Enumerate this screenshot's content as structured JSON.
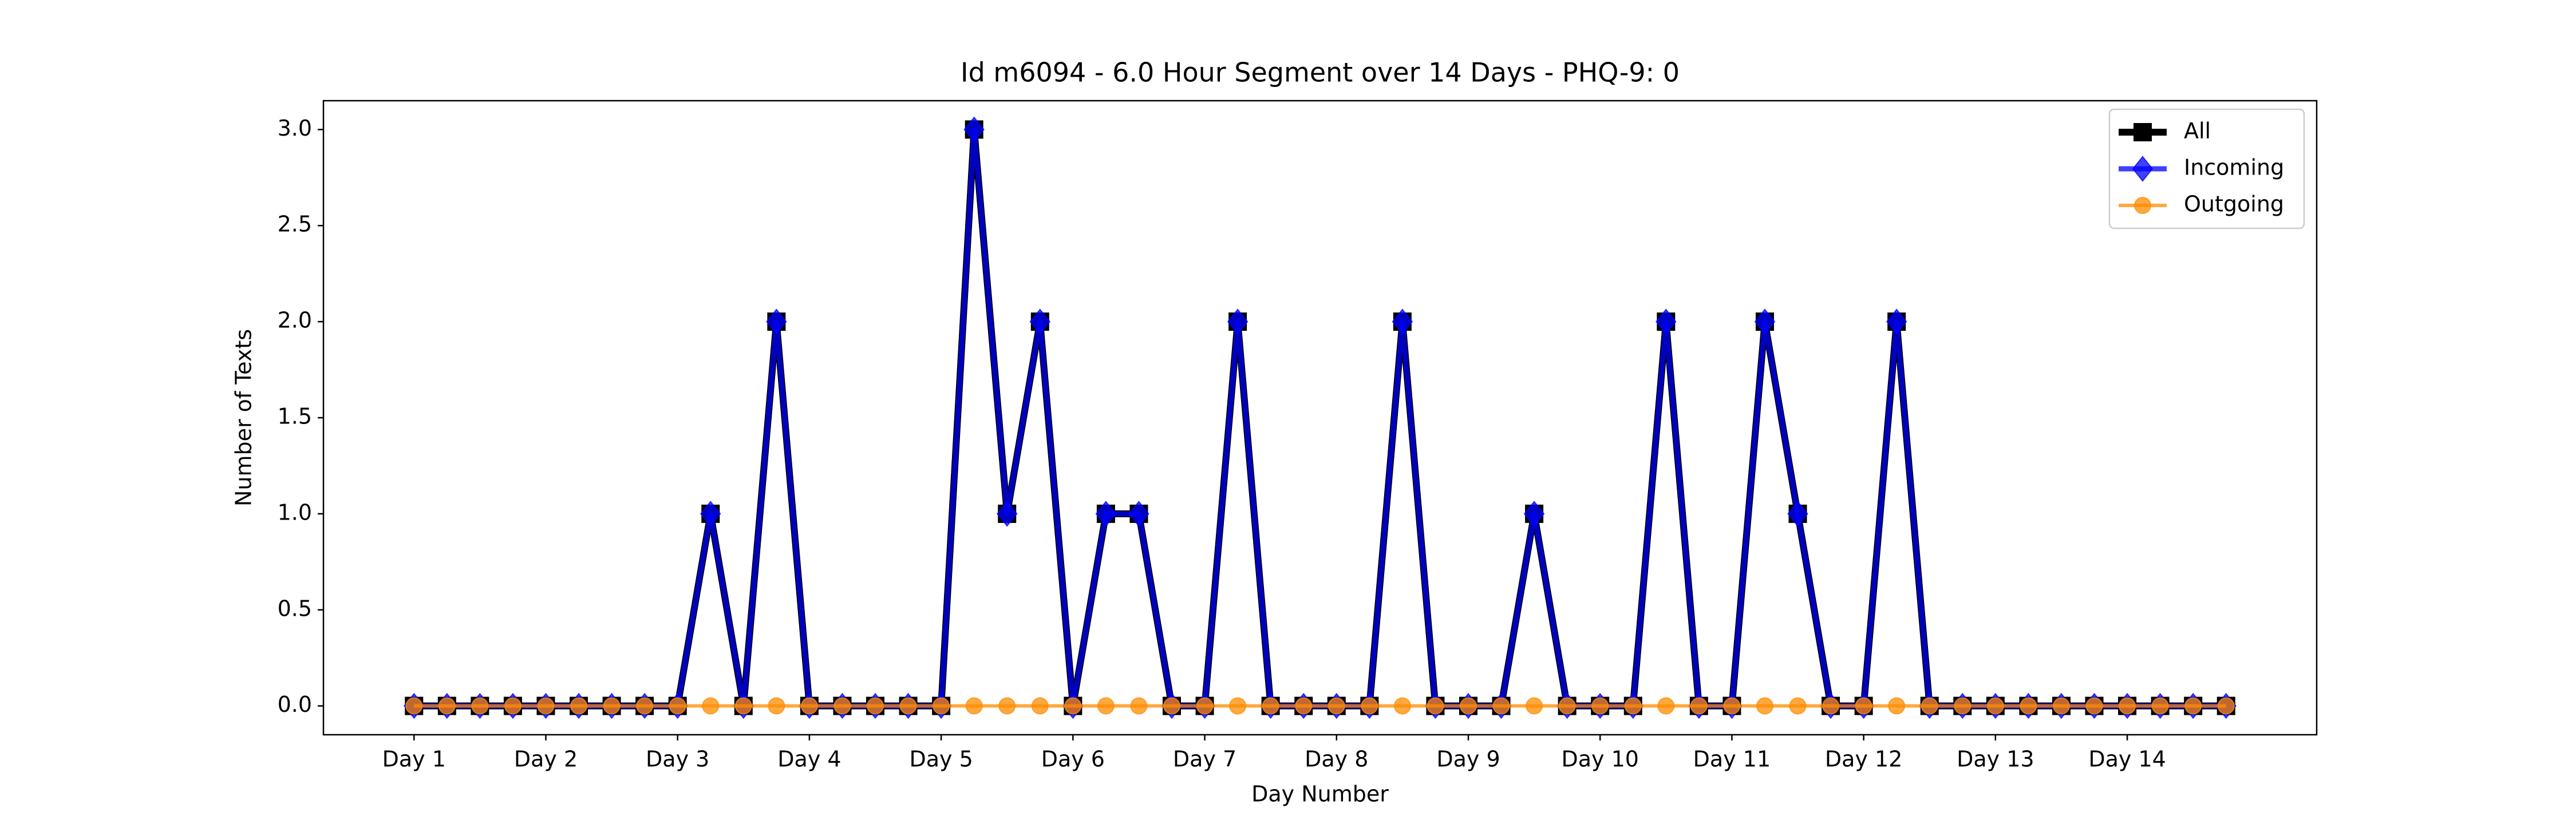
{
  "chart_data": {
    "type": "line",
    "title": "Id m6094 - 6.0 Hour Segment over 14 Days - PHQ-9: 0",
    "x_label": "Day Number",
    "y_label": "Number of Texts",
    "categories": [
      "Day 1",
      null,
      null,
      null,
      "Day 2",
      null,
      null,
      null,
      "Day 3",
      null,
      null,
      null,
      "Day 4",
      null,
      null,
      null,
      "Day 5",
      null,
      null,
      null,
      "Day 6",
      null,
      null,
      null,
      "Day 7",
      null,
      null,
      null,
      "Day 8",
      null,
      null,
      null,
      "Day 9",
      null,
      null,
      null,
      "Day 10",
      null,
      null,
      null,
      "Day 11",
      null,
      null,
      null,
      "Day 12",
      null,
      null,
      null,
      "Day 13",
      null,
      null,
      null,
      "Day 14",
      null,
      null,
      null
    ],
    "series": [
      {
        "name": "All",
        "color": "#000000",
        "marker": "square",
        "values": [
          0,
          0,
          0,
          0,
          0,
          0,
          0,
          0,
          0,
          1,
          0,
          2,
          0,
          0,
          0,
          0,
          0,
          3,
          1,
          2,
          0,
          1,
          1,
          0,
          0,
          2,
          0,
          0,
          0,
          0,
          2,
          0,
          0,
          0,
          1,
          0,
          0,
          0,
          2,
          0,
          0,
          2,
          1,
          0,
          0,
          2,
          0,
          0,
          0,
          0,
          0,
          0,
          0,
          0,
          0,
          0
        ]
      },
      {
        "name": "Incoming",
        "color": "#0000ff",
        "marker": "diamond",
        "values": [
          0,
          0,
          0,
          0,
          0,
          0,
          0,
          0,
          0,
          1,
          0,
          2,
          0,
          0,
          0,
          0,
          0,
          3,
          1,
          2,
          0,
          1,
          1,
          0,
          0,
          2,
          0,
          0,
          0,
          0,
          2,
          0,
          0,
          0,
          1,
          0,
          0,
          0,
          2,
          0,
          0,
          2,
          1,
          0,
          0,
          2,
          0,
          0,
          0,
          0,
          0,
          0,
          0,
          0,
          0,
          0
        ]
      },
      {
        "name": "Outgoing",
        "color": "#ff8c00",
        "marker": "circle",
        "values": [
          0,
          0,
          0,
          0,
          0,
          0,
          0,
          0,
          0,
          0,
          0,
          0,
          0,
          0,
          0,
          0,
          0,
          0,
          0,
          0,
          0,
          0,
          0,
          0,
          0,
          0,
          0,
          0,
          0,
          0,
          0,
          0,
          0,
          0,
          0,
          0,
          0,
          0,
          0,
          0,
          0,
          0,
          0,
          0,
          0,
          0,
          0,
          0,
          0,
          0,
          0,
          0,
          0,
          0,
          0,
          0
        ]
      }
    ],
    "ylim": [
      -0.15,
      3.15
    ],
    "yticks": [
      {
        "value": 0,
        "label": "0.0"
      },
      {
        "value": 0.5,
        "label": "0.5"
      },
      {
        "value": 1,
        "label": "1.0"
      },
      {
        "value": 1.5,
        "label": "1.5"
      },
      {
        "value": 2,
        "label": "2.0"
      },
      {
        "value": 2.5,
        "label": "2.5"
      },
      {
        "value": 3,
        "label": "3.0"
      }
    ],
    "legend": "upper right",
    "grid": false
  }
}
